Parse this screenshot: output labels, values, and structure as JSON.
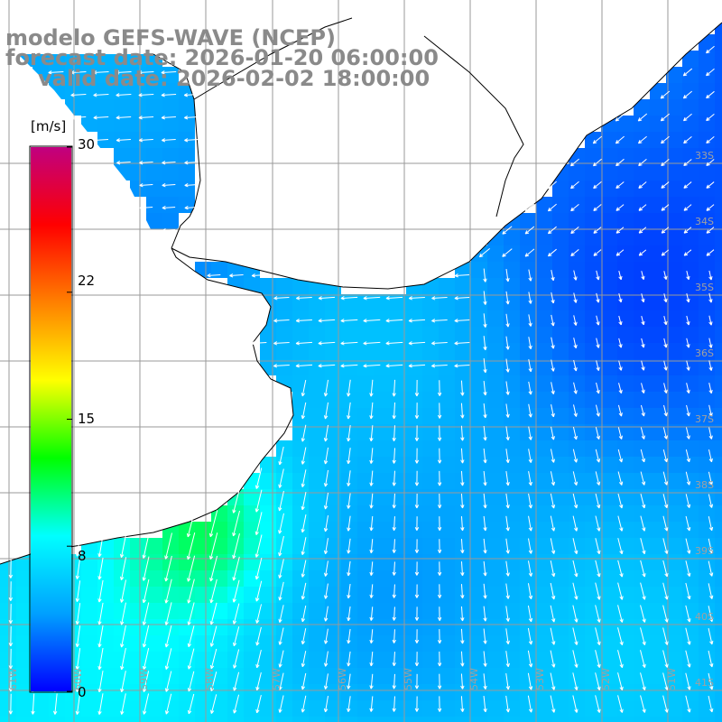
{
  "title": {
    "line1": "modelo GEFS-WAVE (NCEP)",
    "line2": "forecast date: 2026-01-20 06:00:00",
    "line3": "valid date: 2026-02-02 18:00:00"
  },
  "colorbar": {
    "unit": "[m/s]",
    "min": 0,
    "max": 30,
    "ticks": [
      "30",
      "22",
      "15",
      "8",
      "0"
    ],
    "tick_values": [
      30,
      22,
      15,
      8,
      0
    ],
    "colors": [
      "#0000ff",
      "#00a0ff",
      "#00ffff",
      "#00ff00",
      "#ffff00",
      "#ff8000",
      "#ff0000",
      "#c00080"
    ]
  },
  "map": {
    "lat_labels": [
      "33S",
      "34S",
      "35S",
      "36S",
      "37S",
      "38S",
      "39S",
      "40S",
      "41S"
    ],
    "lon_labels": [
      "61W",
      "60W",
      "59W",
      "58W",
      "57W",
      "56W",
      "55W",
      "54W",
      "53W",
      "52W",
      "51W"
    ],
    "land_color": "#ffffff",
    "grid_color": "#9a9a9a",
    "coast_color": "#000000",
    "arrow_color": "#ffffff"
  }
}
